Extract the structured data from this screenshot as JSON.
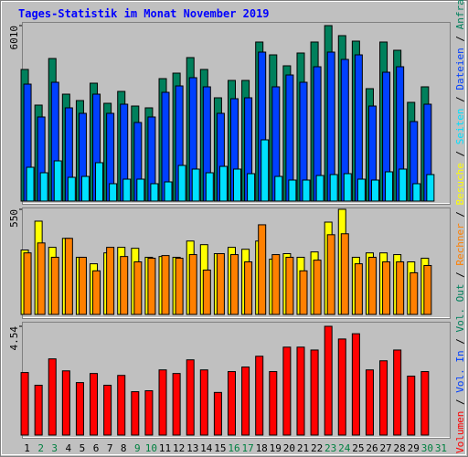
{
  "chart_data": [
    {
      "type": "bar",
      "title": "Tages-Statistik im Monat November 2019",
      "categories": [
        "1",
        "2",
        "3",
        "4",
        "5",
        "6",
        "7",
        "8",
        "9",
        "10",
        "11",
        "12",
        "13",
        "14",
        "15",
        "16",
        "17",
        "18",
        "19",
        "20",
        "21",
        "22",
        "23",
        "24",
        "25",
        "26",
        "27",
        "28",
        "29",
        "30",
        "31"
      ],
      "x_label_colors": [
        "#000000",
        "#008040",
        "#008040",
        "#000000",
        "#000000",
        "#000000",
        "#000000",
        "#000000",
        "#008040",
        "#008040",
        "#000000",
        "#000000",
        "#000000",
        "#000000",
        "#000000",
        "#008040",
        "#008040",
        "#000000",
        "#000000",
        "#000000",
        "#000000",
        "#000000",
        "#008040",
        "#008040",
        "#000000",
        "#000000",
        "#000000",
        "#000000",
        "#000000",
        "#008040",
        "#008040"
      ],
      "ylim": [
        0,
        6010
      ],
      "yticks": [
        6010
      ],
      "legend_separator": "/",
      "series": [
        {
          "name": "Anfragen",
          "color": "#00805c",
          "values": [
            4508,
            3287,
            4883,
            3662,
            3443,
            4038,
            3349,
            3756,
            3255,
            3193,
            4194,
            4382,
            4914,
            4508,
            3537,
            4132,
            4132,
            5447,
            5008,
            4633,
            5071,
            5447,
            6010,
            5666,
            5478,
            3850,
            5447,
            5165,
            3381,
            3913,
            null
          ]
        },
        {
          "name": "Dateien",
          "color": "#0040ff",
          "values": [
            4006,
            2880,
            4069,
            3193,
            3005,
            3662,
            3005,
            3318,
            2692,
            2880,
            3725,
            3944,
            4226,
            3913,
            3005,
            3506,
            3537,
            5102,
            3913,
            4319,
            4069,
            4601,
            5102,
            4852,
            5008,
            3255,
            4413,
            4601,
            2723,
            3318,
            null
          ]
        },
        {
          "name": "Seiten",
          "color": "#00e0ff",
          "values": [
            1158,
            970,
            1377,
            814,
            845,
            1315,
            595,
            751,
            751,
            595,
            657,
            1221,
            1096,
            970,
            1189,
            1096,
            939,
            2097,
            845,
            720,
            720,
            876,
            908,
            939,
            751,
            720,
            1002,
            1096,
            595,
            908,
            null
          ]
        }
      ]
    },
    {
      "type": "bar",
      "ylim": [
        0,
        550
      ],
      "yticks": [
        550
      ],
      "series": [
        {
          "name": "Besuche",
          "color": "#ffff00",
          "values": [
            337,
            488,
            351,
            398,
            299,
            265,
            322,
            351,
            346,
            299,
            303,
            299,
            384,
            365,
            318,
            351,
            341,
            384,
            289,
            318,
            299,
            327,
            483,
            550,
            299,
            322,
            322,
            313,
            275,
            294,
            null
          ]
        },
        {
          "name": "Rechner",
          "color": "#ff8000",
          "values": [
            322,
            374,
            299,
            398,
            299,
            228,
            351,
            303,
            275,
            294,
            308,
            294,
            313,
            232,
            318,
            313,
            275,
            469,
            313,
            299,
            228,
            284,
            417,
            422,
            265,
            299,
            275,
            275,
            218,
            256,
            null
          ]
        }
      ]
    },
    {
      "type": "bar",
      "ylim": [
        0,
        4.54
      ],
      "yticks": [
        4.54
      ],
      "series": [
        {
          "name": "Volumen",
          "color": "#ff0000",
          "values": [
            2.61,
            2.08,
            3.18,
            2.68,
            2.19,
            2.57,
            2.08,
            2.49,
            1.81,
            1.85,
            2.72,
            2.57,
            3.14,
            2.72,
            1.78,
            2.65,
            2.84,
            3.29,
            2.65,
            3.67,
            3.67,
            3.55,
            4.54,
            4.01,
            4.23,
            2.72,
            3.1,
            3.55,
            2.46,
            2.65,
            null
          ]
        },
        {
          "name": "Vol. In",
          "color": "#0040ff",
          "values": [
            null,
            null,
            null,
            null,
            null,
            null,
            null,
            null,
            null,
            null,
            null,
            null,
            null,
            null,
            null,
            null,
            null,
            null,
            null,
            null,
            null,
            null,
            null,
            null,
            null,
            null,
            null,
            null,
            null,
            null,
            null
          ]
        },
        {
          "name": "Vol. Out",
          "color": "#00805c",
          "values": [
            null,
            null,
            null,
            null,
            null,
            null,
            null,
            null,
            null,
            null,
            null,
            null,
            null,
            null,
            null,
            null,
            null,
            null,
            null,
            null,
            null,
            null,
            null,
            null,
            null,
            null,
            null,
            null,
            null,
            null,
            null
          ]
        }
      ]
    }
  ]
}
